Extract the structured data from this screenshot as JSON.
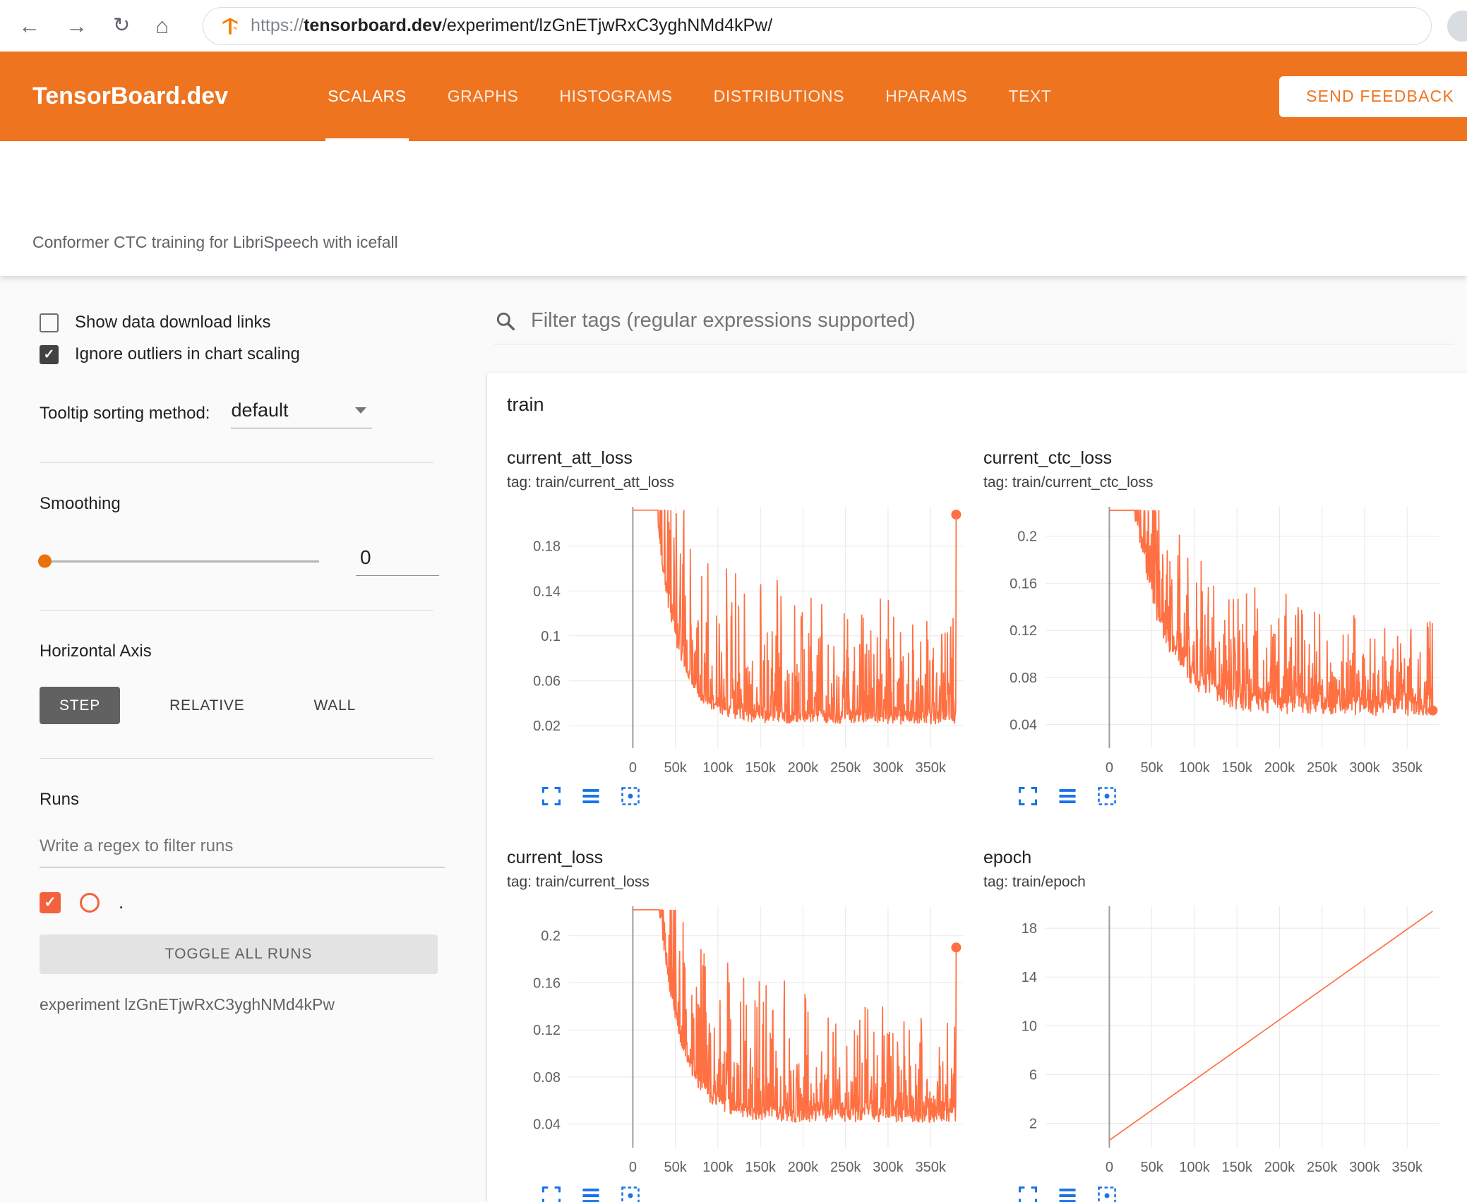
{
  "browser": {
    "back_icon": "←",
    "forward_icon": "→",
    "reload_icon": "↻",
    "home_icon": "⌂",
    "url": {
      "scheme": "https://",
      "host": "tensorboard.dev",
      "path": "/experiment/lzGnETjwRxC3yghNMd4kPw/"
    }
  },
  "header": {
    "brand": "TensorBoard.dev",
    "tabs": [
      {
        "label": "SCALARS",
        "active": true
      },
      {
        "label": "GRAPHS",
        "active": false
      },
      {
        "label": "HISTOGRAMS",
        "active": false
      },
      {
        "label": "DISTRIBUTIONS",
        "active": false
      },
      {
        "label": "HPARAMS",
        "active": false
      },
      {
        "label": "TEXT",
        "active": false
      }
    ],
    "feedback_button": "SEND FEEDBACK"
  },
  "experiment_title": "Conformer CTC training for LibriSpeech with icefall",
  "sidebar": {
    "show_download_label": "Show data download links",
    "show_download_checked": false,
    "ignore_outliers_label": "Ignore outliers in chart scaling",
    "ignore_outliers_checked": true,
    "tooltip_label": "Tooltip sorting method:",
    "tooltip_value": "default",
    "smoothing_label": "Smoothing",
    "smoothing_value": "0",
    "horizontal_axis_label": "Horizontal Axis",
    "axis_options": [
      {
        "label": "STEP",
        "active": true
      },
      {
        "label": "RELATIVE",
        "active": false
      },
      {
        "label": "WALL",
        "active": false
      }
    ],
    "runs_label": "Runs",
    "runs_filter_placeholder": "Write a regex to filter runs",
    "run_checked": true,
    "run_name": ".",
    "toggle_all_label": "TOGGLE ALL RUNS",
    "experiment_note": "experiment lzGnETjwRxC3yghNMd4kPw"
  },
  "main": {
    "filter_placeholder": "Filter tags (regular expressions supported)",
    "group_label": "train"
  },
  "chart_toolbar_icons": [
    "fullscreen-icon",
    "runs-selector-icon",
    "fit-domain-icon"
  ],
  "colors": {
    "accent_orange": "#ee7420",
    "line_orange": "#ff7043",
    "icon_blue": "#1a73e8",
    "grid": "#e8e8e8",
    "zero_line": "#9e9e9e",
    "tick_text": "#616161"
  },
  "chart_data": [
    {
      "type": "line",
      "title": "current_att_loss",
      "subtitle": "tag: train/current_att_loss",
      "x_tick_values": [
        0,
        50000,
        100000,
        150000,
        200000,
        250000,
        300000,
        350000
      ],
      "x_tick_labels": [
        "0",
        "50k",
        "100k",
        "150k",
        "200k",
        "250k",
        "300k",
        "350k"
      ],
      "x_domain": [
        -75000,
        388000
      ],
      "x_data_range": [
        0,
        380000
      ],
      "y_tick_values": [
        0.02,
        0.06,
        0.1,
        0.14,
        0.18
      ],
      "y_tick_labels": [
        "0.02",
        "0.06",
        "0.1",
        "0.14",
        "0.18"
      ],
      "y_domain": [
        0.0,
        0.215
      ],
      "end_dot": true,
      "series": {
        "kind": "noisy_decay",
        "seed": 3,
        "n": 850,
        "start": 0.62,
        "floor": 0.021,
        "decay": 16,
        "spike_amp": 0.185,
        "amp_min": 0.45,
        "amp_decay": 2.2,
        "spike_pow": 5.5,
        "noise": 0.012,
        "clip": 0.212,
        "end_value": 0.208
      }
    },
    {
      "type": "line",
      "title": "current_ctc_loss",
      "subtitle": "tag: train/current_ctc_loss",
      "x_tick_values": [
        0,
        50000,
        100000,
        150000,
        200000,
        250000,
        300000,
        350000
      ],
      "x_tick_labels": [
        "0",
        "50k",
        "100k",
        "150k",
        "200k",
        "250k",
        "300k",
        "350k"
      ],
      "x_domain": [
        -75000,
        388000
      ],
      "x_data_range": [
        0,
        380000
      ],
      "y_tick_values": [
        0.04,
        0.08,
        0.12,
        0.16,
        0.2
      ],
      "y_tick_labels": [
        "0.04",
        "0.08",
        "0.12",
        "0.16",
        "0.2"
      ],
      "y_domain": [
        0.02,
        0.225
      ],
      "end_dot": true,
      "series": {
        "kind": "noisy_decay",
        "seed": 7,
        "n": 850,
        "start": 0.45,
        "floor": 0.047,
        "decay": 11,
        "spike_amp": 0.125,
        "amp_min": 0.5,
        "amp_decay": 1.5,
        "spike_pow": 4.5,
        "noise": 0.018,
        "clip": 0.222,
        "end_value": 0.052
      }
    },
    {
      "type": "line",
      "title": "current_loss",
      "subtitle": "tag: train/current_loss",
      "x_tick_values": [
        0,
        50000,
        100000,
        150000,
        200000,
        250000,
        300000,
        350000
      ],
      "x_tick_labels": [
        "0",
        "50k",
        "100k",
        "150k",
        "200k",
        "250k",
        "300k",
        "350k"
      ],
      "x_domain": [
        -75000,
        388000
      ],
      "x_data_range": [
        0,
        380000
      ],
      "y_tick_values": [
        0.04,
        0.08,
        0.12,
        0.16,
        0.2
      ],
      "y_tick_labels": [
        "0.04",
        "0.08",
        "0.12",
        "0.16",
        "0.2"
      ],
      "y_domain": [
        0.02,
        0.225
      ],
      "end_dot": true,
      "series": {
        "kind": "noisy_decay",
        "seed": 5,
        "n": 850,
        "start": 0.65,
        "floor": 0.041,
        "decay": 15,
        "spike_amp": 0.165,
        "amp_min": 0.45,
        "amp_decay": 2.0,
        "spike_pow": 5.0,
        "noise": 0.013,
        "clip": 0.222,
        "end_value": 0.19
      }
    },
    {
      "type": "line",
      "title": "epoch",
      "subtitle": "tag: train/epoch",
      "x_tick_values": [
        0,
        50000,
        100000,
        150000,
        200000,
        250000,
        300000,
        350000
      ],
      "x_tick_labels": [
        "0",
        "50k",
        "100k",
        "150k",
        "200k",
        "250k",
        "300k",
        "350k"
      ],
      "x_domain": [
        -75000,
        388000
      ],
      "x_data_range": [
        0,
        380000
      ],
      "y_tick_values": [
        2,
        6,
        10,
        14,
        18
      ],
      "y_tick_labels": [
        "2",
        "6",
        "10",
        "14",
        "18"
      ],
      "y_domain": [
        0,
        19.8
      ],
      "end_dot": false,
      "series": {
        "kind": "linear",
        "n": 2,
        "y0": 0.6,
        "y1": 19.4
      }
    }
  ]
}
